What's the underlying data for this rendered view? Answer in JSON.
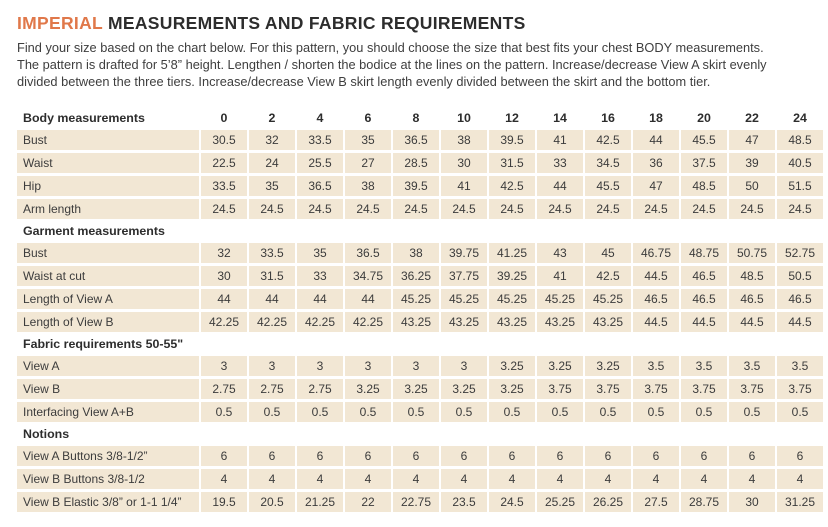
{
  "colors": {
    "accent": "#e0784a",
    "cell_bg": "#f2e7d4",
    "text": "#3c3c3c",
    "heading_text": "#2d2d2d"
  },
  "header": {
    "title_accent": "IMPERIAL",
    "title_rest": "MEASUREMENTS AND FABRIC REQUIREMENTS",
    "intro_lines": [
      "Find your size based on the chart below. For this pattern, you should choose the size that best fits your chest BODY measurements.",
      "The pattern is drafted for 5’8” height. Lengthen / shorten the bodice at the lines on the pattern. Increase/decrease View A skirt evenly",
      "divided between the three tiers. Increase/decrease View B skirt length evenly divided between the skirt and the bottom tier."
    ]
  },
  "chart_data": {
    "type": "table",
    "sizes_label": "Body measurements",
    "sizes": [
      "0",
      "2",
      "4",
      "6",
      "8",
      "10",
      "12",
      "14",
      "16",
      "18",
      "20",
      "22",
      "24"
    ],
    "sections": [
      {
        "heading": null,
        "rows": [
          {
            "label": "Bust",
            "values": [
              "30.5",
              "32",
              "33.5",
              "35",
              "36.5",
              "38",
              "39.5",
              "41",
              "42.5",
              "44",
              "45.5",
              "47",
              "48.5"
            ]
          },
          {
            "label": "Waist",
            "values": [
              "22.5",
              "24",
              "25.5",
              "27",
              "28.5",
              "30",
              "31.5",
              "33",
              "34.5",
              "36",
              "37.5",
              "39",
              "40.5"
            ]
          },
          {
            "label": "Hip",
            "values": [
              "33.5",
              "35",
              "36.5",
              "38",
              "39.5",
              "41",
              "42.5",
              "44",
              "45.5",
              "47",
              "48.5",
              "50",
              "51.5"
            ]
          },
          {
            "label": "Arm length",
            "values": [
              "24.5",
              "24.5",
              "24.5",
              "24.5",
              "24.5",
              "24.5",
              "24.5",
              "24.5",
              "24.5",
              "24.5",
              "24.5",
              "24.5",
              "24.5"
            ]
          }
        ]
      },
      {
        "heading": "Garment measurements",
        "rows": [
          {
            "label": "Bust",
            "values": [
              "32",
              "33.5",
              "35",
              "36.5",
              "38",
              "39.75",
              "41.25",
              "43",
              "45",
              "46.75",
              "48.75",
              "50.75",
              "52.75"
            ]
          },
          {
            "label": "Waist at cut",
            "values": [
              "30",
              "31.5",
              "33",
              "34.75",
              "36.25",
              "37.75",
              "39.25",
              "41",
              "42.5",
              "44.5",
              "46.5",
              "48.5",
              "50.5"
            ]
          },
          {
            "label": "Length of View A",
            "values": [
              "44",
              "44",
              "44",
              "44",
              "45.25",
              "45.25",
              "45.25",
              "45.25",
              "45.25",
              "46.5",
              "46.5",
              "46.5",
              "46.5"
            ]
          },
          {
            "label": "Length of View B",
            "values": [
              "42.25",
              "42.25",
              "42.25",
              "42.25",
              "43.25",
              "43.25",
              "43.25",
              "43.25",
              "43.25",
              "44.5",
              "44.5",
              "44.5",
              "44.5"
            ]
          }
        ]
      },
      {
        "heading": "Fabric requirements 50-55\"",
        "rows": [
          {
            "label": "View A",
            "values": [
              "3",
              "3",
              "3",
              "3",
              "3",
              "3",
              "3.25",
              "3.25",
              "3.25",
              "3.5",
              "3.5",
              "3.5",
              "3.5"
            ]
          },
          {
            "label": "View B",
            "values": [
              "2.75",
              "2.75",
              "2.75",
              "3.25",
              "3.25",
              "3.25",
              "3.25",
              "3.75",
              "3.75",
              "3.75",
              "3.75",
              "3.75",
              "3.75"
            ]
          },
          {
            "label": "Interfacing View A+B",
            "values": [
              "0.5",
              "0.5",
              "0.5",
              "0.5",
              "0.5",
              "0.5",
              "0.5",
              "0.5",
              "0.5",
              "0.5",
              "0.5",
              "0.5",
              "0.5"
            ]
          }
        ]
      },
      {
        "heading": "Notions",
        "rows": [
          {
            "label": "View A Buttons 3/8-1/2”",
            "values": [
              "6",
              "6",
              "6",
              "6",
              "6",
              "6",
              "6",
              "6",
              "6",
              "6",
              "6",
              "6",
              "6"
            ]
          },
          {
            "label": "View B Buttons 3/8-1/2",
            "values": [
              "4",
              "4",
              "4",
              "4",
              "4",
              "4",
              "4",
              "4",
              "4",
              "4",
              "4",
              "4",
              "4"
            ]
          },
          {
            "label": "View B Elastic 3/8” or 1-1 1/4”",
            "values": [
              "19.5",
              "20.5",
              "21.25",
              "22",
              "22.75",
              "23.5",
              "24.5",
              "25.25",
              "26.25",
              "27.5",
              "28.75",
              "30",
              "31.25"
            ]
          }
        ]
      }
    ]
  }
}
